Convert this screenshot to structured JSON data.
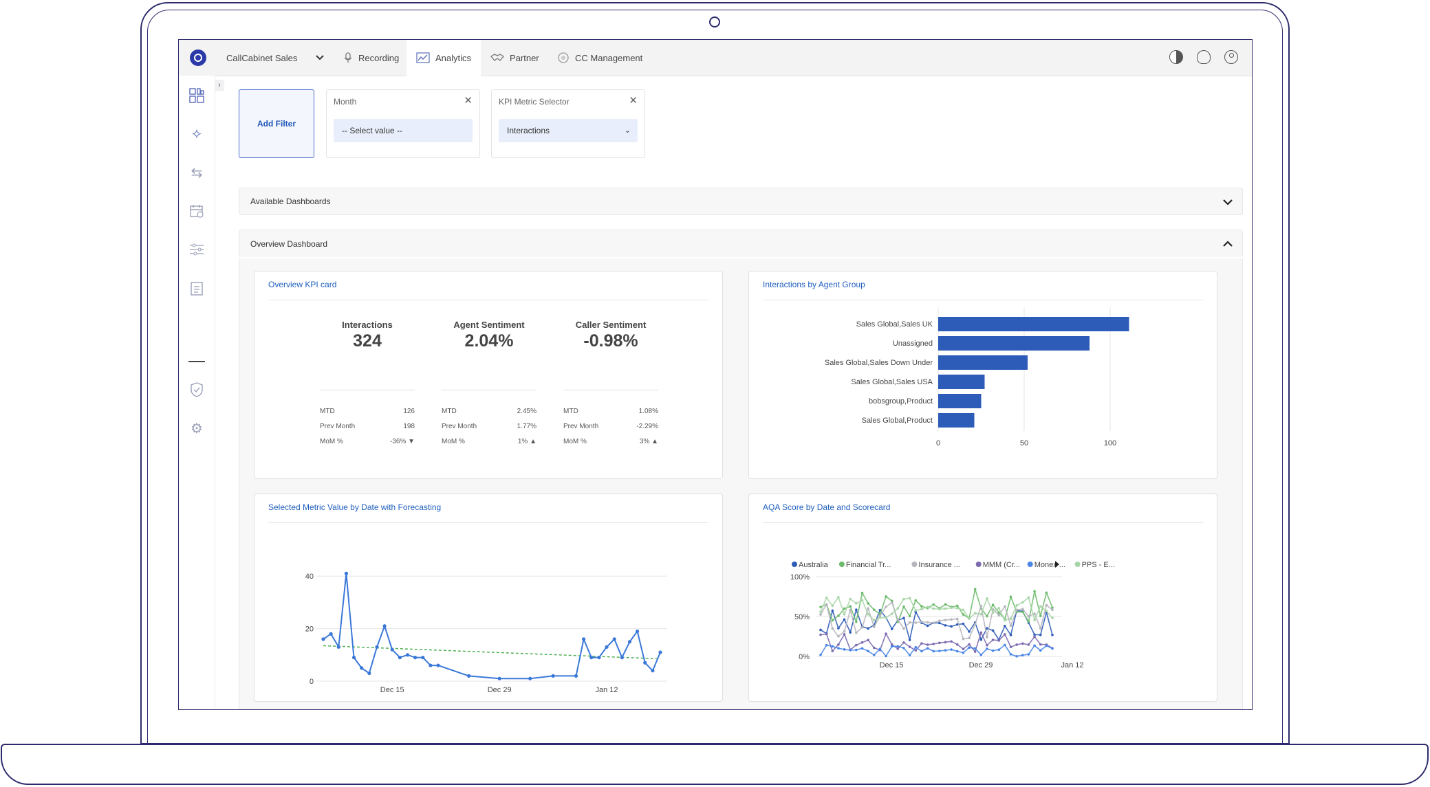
{
  "topnav": {
    "account": "CallCabinet Sales",
    "items": [
      {
        "label": "Recording",
        "icon": "microphone-icon"
      },
      {
        "label": "Analytics",
        "icon": "analytics-icon",
        "active": true
      },
      {
        "label": "Partner",
        "icon": "handshake-icon"
      },
      {
        "label": "CC Management",
        "icon": "management-icon"
      }
    ]
  },
  "filters": {
    "add_label": "Add Filter",
    "month": {
      "title": "Month",
      "value": "-- Select value --"
    },
    "kpi": {
      "title": "KPI Metric Selector",
      "value": "Interactions"
    }
  },
  "accordions": {
    "available": "Available Dashboards",
    "overview": "Overview Dashboard"
  },
  "kpi_card": {
    "title": "Overview KPI card",
    "columns": [
      {
        "label": "Interactions",
        "value": "324",
        "mtd_label": "MTD",
        "mtd": "126",
        "prev_label": "Prev Month",
        "prev": "198",
        "mom_label": "MoM %",
        "mom": "-36% ▼"
      },
      {
        "label": "Agent Sentiment",
        "value": "2.04%",
        "mtd_label": "MTD",
        "mtd": "2.45%",
        "prev_label": "Prev Month",
        "prev": "1.77%",
        "mom_label": "MoM %",
        "mom": "1% ▲"
      },
      {
        "label": "Caller Sentiment",
        "value": "-0.98%",
        "mtd_label": "MTD",
        "mtd": "1.08%",
        "prev_label": "Prev Month",
        "prev": "-2.29%",
        "mom_label": "MoM %",
        "mom": "3% ▲"
      }
    ]
  },
  "panels": {
    "agent_group_title": "Interactions by Agent Group",
    "forecast_title": "Selected Metric Value by Date with Forecasting",
    "aqa_title": "AQA Score by Date and Scorecard"
  },
  "colors": {
    "bar": "#2c5bb8",
    "line": "#3a78d8",
    "trend": "#4caf50",
    "accent": "#1f5fbf"
  },
  "chart_data": [
    {
      "type": "bar",
      "orientation": "horizontal",
      "title": "Interactions by Agent Group",
      "categories": [
        "Sales Global,Sales UK",
        "Unassigned",
        "Sales Global,Sales Down Under",
        "Sales Global,Sales USA",
        "bobsgroup,Product",
        "Sales Global,Product"
      ],
      "values": [
        111,
        88,
        52,
        27,
        25,
        21
      ],
      "xlim": [
        0,
        120
      ],
      "xticks": [
        "0",
        "50",
        "100"
      ]
    },
    {
      "type": "line",
      "title": "Selected Metric Value by Date with Forecasting",
      "x": [
        "2023-12-06",
        "2023-12-07",
        "2023-12-08",
        "2023-12-09",
        "2023-12-10",
        "2023-12-11",
        "2023-12-12",
        "2023-12-13",
        "2023-12-14",
        "2023-12-15",
        "2023-12-16",
        "2023-12-17",
        "2023-12-18",
        "2023-12-19",
        "2023-12-20",
        "2023-12-21",
        "2023-12-25",
        "2023-12-29",
        "2024-01-02",
        "2024-01-05",
        "2024-01-08",
        "2024-01-09",
        "2024-01-10",
        "2024-01-11",
        "2024-01-12",
        "2024-01-13",
        "2024-01-14",
        "2024-01-15",
        "2024-01-16",
        "2024-01-17",
        "2024-01-18",
        "2024-01-19"
      ],
      "values": [
        16,
        18,
        13,
        41,
        9,
        5,
        3,
        13,
        21,
        12,
        9,
        10,
        9,
        9,
        6,
        6,
        2,
        1,
        1,
        2,
        2,
        16,
        9,
        9,
        13,
        16,
        9,
        15,
        19,
        7,
        4,
        11
      ],
      "trend": {
        "start": 13.5,
        "end": 8.5
      },
      "ylim": [
        0,
        45
      ],
      "yticks": [
        "0",
        "20",
        "40"
      ],
      "xticks": [
        "Dec 15",
        "Dec 29",
        "Jan 12"
      ]
    },
    {
      "type": "line",
      "title": "AQA Score by Date and Scorecard",
      "legend": [
        "Australia",
        "Financial Tr...",
        "Insurance ...",
        "MMM (Cr...",
        "Monex ...",
        "PPS - E..."
      ],
      "legend_colors": [
        "#2c5bb8",
        "#6dbb6d",
        "#b5b5bd",
        "#7d6bb0",
        "#4a86e8",
        "#a8d5a8"
      ],
      "yticks": [
        "0%",
        "50%",
        "100%"
      ],
      "xticks": [
        "Dec 15",
        "Dec 29",
        "Jan 12"
      ],
      "ylim": [
        0,
        100
      ]
    }
  ]
}
